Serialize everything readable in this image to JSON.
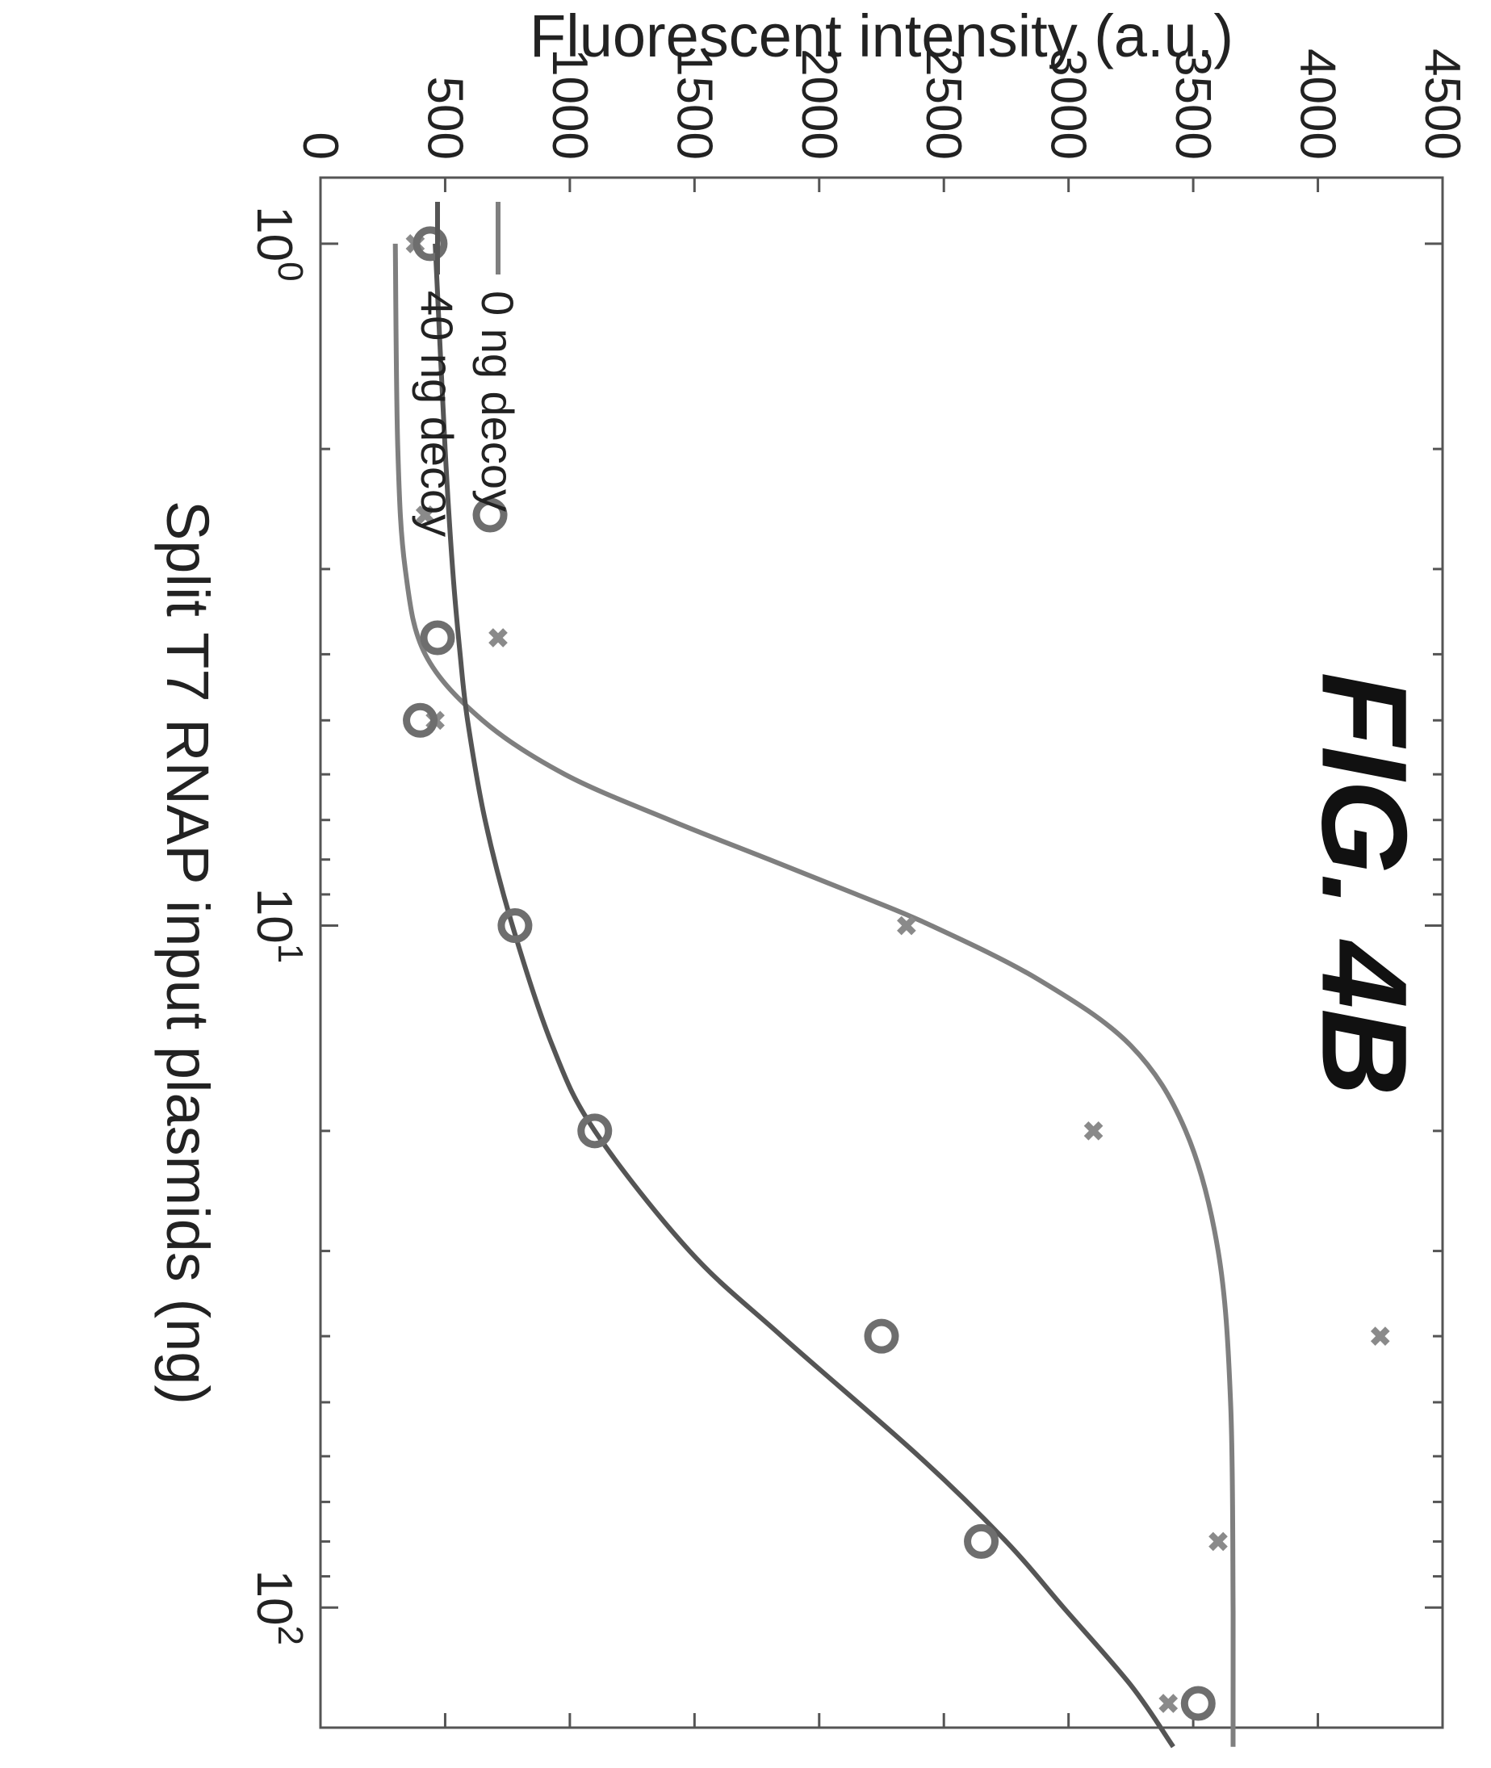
{
  "figure_label": "FIG. 4B",
  "chart_data": {
    "type": "scatter",
    "title": "",
    "xlabel": "Split T7 RNAP input plasmids (ng)",
    "ylabel": "Fluorescent intensity (a.u.)",
    "xscale": "log",
    "xlim": [
      0.8,
      150
    ],
    "ylim": [
      0,
      4500
    ],
    "x_ticks": [
      {
        "value": 1,
        "label": "10",
        "exp": "0"
      },
      {
        "value": 10,
        "label": "10",
        "exp": "1"
      },
      {
        "value": 100,
        "label": "10",
        "exp": "2"
      }
    ],
    "y_ticks": [
      0,
      500,
      1000,
      1500,
      2000,
      2500,
      3000,
      3500,
      4000,
      4500
    ],
    "grid": false,
    "legend_position": "top-left",
    "series": [
      {
        "name": "0 ng decoy",
        "marker": "x",
        "color": "#8a8a8a",
        "line_color": "#7f7f7f",
        "points": [
          {
            "x": 1.0,
            "y": 380
          },
          {
            "x": 2.5,
            "y": 420
          },
          {
            "x": 5.0,
            "y": 460
          },
          {
            "x": 10.0,
            "y": 2350
          },
          {
            "x": 20.0,
            "y": 3100
          },
          {
            "x": 40.0,
            "y": 4250
          },
          {
            "x": 80.0,
            "y": 3600
          },
          {
            "x": 160.0,
            "y": 3400
          }
        ],
        "fit": [
          {
            "x": 1.0,
            "y": 300
          },
          {
            "x": 2.0,
            "y": 310
          },
          {
            "x": 3.0,
            "y": 340
          },
          {
            "x": 4.0,
            "y": 420
          },
          {
            "x": 5.0,
            "y": 650
          },
          {
            "x": 6.0,
            "y": 980
          },
          {
            "x": 7.0,
            "y": 1400
          },
          {
            "x": 8.0,
            "y": 1800
          },
          {
            "x": 9.0,
            "y": 2150
          },
          {
            "x": 10.0,
            "y": 2450
          },
          {
            "x": 12.0,
            "y": 2880
          },
          {
            "x": 15.0,
            "y": 3250
          },
          {
            "x": 20.0,
            "y": 3470
          },
          {
            "x": 30.0,
            "y": 3600
          },
          {
            "x": 50.0,
            "y": 3650
          },
          {
            "x": 100.0,
            "y": 3660
          },
          {
            "x": 160.0,
            "y": 3660
          }
        ]
      },
      {
        "name": "40 ng decoy",
        "marker": "o",
        "color": "#6e6e6e",
        "line_color": "#555555",
        "points": [
          {
            "x": 1.0,
            "y": 440
          },
          {
            "x": 2.5,
            "y": 680
          },
          {
            "x": 5.0,
            "y": 400
          },
          {
            "x": 10.0,
            "y": 780
          },
          {
            "x": 20.0,
            "y": 1100
          },
          {
            "x": 40.0,
            "y": 2250
          },
          {
            "x": 80.0,
            "y": 2650
          },
          {
            "x": 160.0,
            "y": 3520
          }
        ],
        "fit": [
          {
            "x": 1.0,
            "y": 460
          },
          {
            "x": 2.0,
            "y": 500
          },
          {
            "x": 3.0,
            "y": 530
          },
          {
            "x": 4.0,
            "y": 560
          },
          {
            "x": 5.0,
            "y": 590
          },
          {
            "x": 7.0,
            "y": 660
          },
          {
            "x": 10.0,
            "y": 770
          },
          {
            "x": 15.0,
            "y": 930
          },
          {
            "x": 20.0,
            "y": 1100
          },
          {
            "x": 30.0,
            "y": 1480
          },
          {
            "x": 40.0,
            "y": 1850
          },
          {
            "x": 60.0,
            "y": 2400
          },
          {
            "x": 80.0,
            "y": 2750
          },
          {
            "x": 100.0,
            "y": 2980
          },
          {
            "x": 130.0,
            "y": 3250
          },
          {
            "x": 160.0,
            "y": 3420
          }
        ]
      }
    ]
  }
}
